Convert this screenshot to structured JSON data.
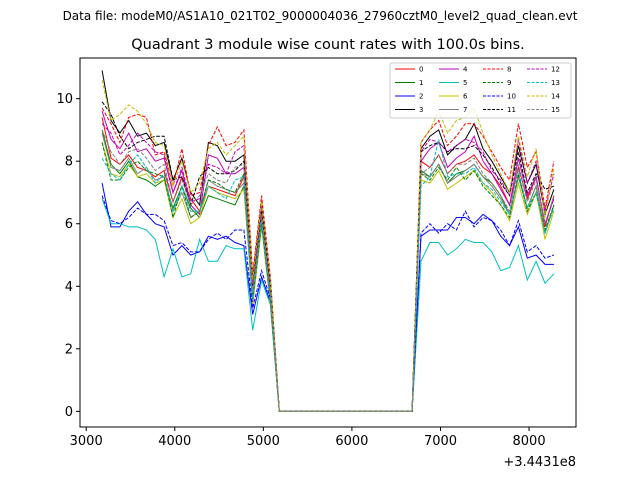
{
  "figure_header": "Data file: modeM0/AS1A10_021T02_9000004036_27960cztM0_level2_quad_clean.evt",
  "chart_data": {
    "type": "line",
    "title": "Quadrant 3 module wise count rates with 100.0s bins.",
    "xlabel": "",
    "ylabel": "",
    "x_offset_label": "+3.4431e8",
    "xlim": [
      2930,
      8530
    ],
    "ylim": [
      -0.5,
      11.3
    ],
    "xticks": [
      3000,
      4000,
      5000,
      6000,
      7000,
      8000
    ],
    "yticks": [
      0,
      2,
      4,
      6,
      8,
      10
    ],
    "legend_location": "upper right",
    "legend_columns": 4,
    "x": [
      3180,
      3280,
      3380,
      3480,
      3580,
      3680,
      3780,
      3880,
      3980,
      4080,
      4180,
      4280,
      4380,
      4480,
      4580,
      4680,
      4780,
      4880,
      4980,
      5080,
      5180,
      5280,
      5380,
      5480,
      5580,
      5680,
      5780,
      5880,
      5980,
      6080,
      6180,
      6280,
      6380,
      6480,
      6580,
      6680,
      6780,
      6880,
      6980,
      7080,
      7180,
      7280,
      7380,
      7480,
      7580,
      7680,
      7780,
      7880,
      7980,
      8080,
      8180,
      8280
    ],
    "series": [
      {
        "name": "0",
        "color": "#ff0000",
        "dash": "solid",
        "values": [
          9.4,
          8.1,
          7.9,
          8.2,
          7.8,
          7.7,
          7.5,
          7.7,
          6.7,
          7.5,
          6.8,
          6.4,
          7.2,
          7.1,
          7.0,
          6.9,
          7.5,
          3.6,
          6.2,
          3.6,
          0,
          0,
          0,
          0,
          0,
          0,
          0,
          0,
          0,
          0,
          0,
          0,
          0,
          0,
          0,
          0,
          8.0,
          7.8,
          8.2,
          7.6,
          7.9,
          8.0,
          8.2,
          7.8,
          7.6,
          7.2,
          6.6,
          7.8,
          6.8,
          7.5,
          5.9,
          6.9
        ]
      },
      {
        "name": "1",
        "color": "#008000",
        "dash": "solid",
        "values": [
          9.0,
          7.9,
          7.6,
          8.0,
          7.5,
          7.4,
          7.2,
          7.4,
          6.5,
          7.2,
          6.5,
          6.2,
          6.9,
          6.8,
          6.7,
          6.6,
          7.2,
          3.5,
          6.0,
          3.5,
          0,
          0,
          0,
          0,
          0,
          0,
          0,
          0,
          0,
          0,
          0,
          0,
          0,
          0,
          0,
          0,
          7.7,
          7.5,
          7.9,
          7.3,
          7.6,
          7.7,
          7.9,
          7.5,
          7.3,
          6.9,
          6.3,
          7.5,
          6.5,
          7.2,
          5.7,
          6.6
        ]
      },
      {
        "name": "2",
        "color": "#0000ff",
        "dash": "solid",
        "values": [
          7.3,
          5.9,
          5.9,
          6.4,
          6.7,
          6.3,
          6.0,
          5.9,
          5.0,
          5.3,
          5.0,
          5.1,
          5.6,
          5.5,
          5.6,
          5.4,
          5.3,
          3.1,
          4.3,
          3.5,
          0,
          0,
          0,
          0,
          0,
          0,
          0,
          0,
          0,
          0,
          0,
          0,
          0,
          0,
          0,
          0,
          5.6,
          5.8,
          5.8,
          5.8,
          6.2,
          6.2,
          6.0,
          6.3,
          6.1,
          5.6,
          5.3,
          5.9,
          4.9,
          5.0,
          4.7,
          4.7
        ]
      },
      {
        "name": "3",
        "color": "#000000",
        "dash": "solid",
        "values": [
          10.9,
          9.3,
          8.9,
          9.3,
          8.8,
          8.9,
          8.5,
          8.6,
          7.4,
          8.1,
          7.0,
          6.6,
          8.6,
          8.5,
          8.0,
          8.0,
          8.2,
          4.3,
          6.7,
          4.2,
          0,
          0,
          0,
          0,
          0,
          0,
          0,
          0,
          0,
          0,
          0,
          0,
          0,
          0,
          0,
          0,
          8.4,
          8.8,
          9.0,
          8.2,
          8.5,
          8.7,
          9.2,
          8.4,
          8.0,
          7.5,
          7.0,
          8.5,
          7.3,
          7.9,
          6.3,
          7.1
        ]
      },
      {
        "name": "4",
        "color": "#bf00bf",
        "dash": "solid",
        "values": [
          9.6,
          8.7,
          8.4,
          8.9,
          8.3,
          8.4,
          8.0,
          8.1,
          7.0,
          7.7,
          6.6,
          6.3,
          8.2,
          8.1,
          7.6,
          7.6,
          7.8,
          4.0,
          6.4,
          3.9,
          0,
          0,
          0,
          0,
          0,
          0,
          0,
          0,
          0,
          0,
          0,
          0,
          0,
          0,
          0,
          0,
          8.0,
          8.4,
          8.6,
          7.8,
          8.1,
          8.3,
          8.8,
          8.0,
          7.6,
          7.1,
          6.6,
          8.1,
          6.9,
          7.5,
          6.0,
          6.8
        ]
      },
      {
        "name": "5",
        "color": "#00bfbf",
        "dash": "solid",
        "values": [
          6.8,
          6.0,
          6.0,
          5.9,
          5.9,
          5.8,
          5.5,
          4.3,
          5.2,
          4.3,
          4.4,
          5.5,
          4.8,
          4.8,
          5.3,
          5.2,
          5.2,
          2.6,
          4.2,
          3.4,
          0,
          0,
          0,
          0,
          0,
          0,
          0,
          0,
          0,
          0,
          0,
          0,
          0,
          0,
          0,
          0,
          4.8,
          5.4,
          5.4,
          5.0,
          5.2,
          5.5,
          5.4,
          5.4,
          5.1,
          4.5,
          4.6,
          5.3,
          4.2,
          4.8,
          4.1,
          4.4
        ]
      },
      {
        "name": "6",
        "color": "#bfbf00",
        "dash": "solid",
        "values": [
          8.6,
          7.6,
          7.5,
          7.9,
          7.5,
          7.6,
          7.3,
          7.4,
          6.2,
          6.8,
          6.0,
          6.2,
          7.2,
          7.0,
          6.9,
          6.8,
          7.1,
          3.4,
          5.9,
          3.4,
          0,
          0,
          0,
          0,
          0,
          0,
          0,
          0,
          0,
          0,
          0,
          0,
          0,
          0,
          0,
          0,
          7.4,
          7.3,
          7.7,
          7.1,
          7.3,
          7.5,
          7.7,
          7.3,
          7.0,
          6.6,
          6.1,
          7.3,
          6.3,
          7.0,
          5.5,
          6.4
        ]
      },
      {
        "name": "7",
        "color": "#808080",
        "dash": "solid",
        "values": [
          8.9,
          7.8,
          7.7,
          8.1,
          7.6,
          7.8,
          7.4,
          7.5,
          6.4,
          7.0,
          6.2,
          6.4,
          7.4,
          7.2,
          7.1,
          7.0,
          7.3,
          3.5,
          6.0,
          3.5,
          0,
          0,
          0,
          0,
          0,
          0,
          0,
          0,
          0,
          0,
          0,
          0,
          0,
          0,
          0,
          0,
          7.6,
          7.5,
          7.9,
          7.3,
          7.5,
          7.7,
          7.9,
          7.5,
          7.2,
          6.8,
          6.3,
          7.5,
          6.5,
          7.2,
          5.7,
          6.6
        ]
      },
      {
        "name": "8",
        "color": "#ff0000",
        "dash": "dashed",
        "values": [
          9.7,
          9.2,
          8.6,
          9.4,
          9.5,
          9.4,
          8.2,
          8.3,
          7.2,
          8.4,
          6.9,
          7.0,
          8.5,
          9.1,
          8.5,
          8.6,
          9.0,
          4.4,
          6.9,
          4.3,
          0,
          0,
          0,
          0,
          0,
          0,
          0,
          0,
          0,
          0,
          0,
          0,
          0,
          0,
          0,
          0,
          8.6,
          9.0,
          9.3,
          8.5,
          8.8,
          9.2,
          9.2,
          8.8,
          8.3,
          7.8,
          7.4,
          9.2,
          7.8,
          8.3,
          6.5,
          8.0
        ]
      },
      {
        "name": "9",
        "color": "#008000",
        "dash": "dashed",
        "values": [
          8.6,
          7.4,
          7.4,
          7.8,
          8.0,
          7.7,
          7.6,
          7.5,
          6.2,
          7.2,
          6.2,
          6.4,
          7.4,
          7.3,
          7.1,
          7.0,
          7.6,
          3.6,
          6.0,
          3.6,
          0,
          0,
          0,
          0,
          0,
          0,
          0,
          0,
          0,
          0,
          0,
          0,
          0,
          0,
          0,
          0,
          7.6,
          7.4,
          7.8,
          7.4,
          7.8,
          7.4,
          7.7,
          7.2,
          6.9,
          6.6,
          6.2,
          7.6,
          6.4,
          7.0,
          5.8,
          6.6
        ]
      },
      {
        "name": "10",
        "color": "#0000ff",
        "dash": "dashed",
        "values": [
          6.9,
          6.1,
          6.0,
          6.2,
          6.5,
          6.3,
          6.3,
          6.1,
          5.3,
          5.4,
          5.1,
          5.1,
          5.5,
          5.7,
          5.5,
          5.8,
          5.8,
          3.3,
          4.5,
          3.6,
          0,
          0,
          0,
          0,
          0,
          0,
          0,
          0,
          0,
          0,
          0,
          0,
          0,
          0,
          0,
          0,
          5.7,
          6.0,
          5.7,
          6.0,
          5.8,
          6.4,
          5.9,
          6.2,
          6.1,
          5.8,
          5.3,
          6.1,
          5.1,
          5.3,
          4.9,
          5.0
        ]
      },
      {
        "name": "11",
        "color": "#000000",
        "dash": "dashed",
        "values": [
          9.9,
          9.5,
          8.8,
          8.4,
          8.6,
          8.7,
          8.8,
          8.8,
          7.4,
          7.5,
          6.6,
          7.5,
          7.8,
          7.6,
          7.6,
          7.7,
          8.0,
          4.0,
          6.4,
          4.0,
          0,
          0,
          0,
          0,
          0,
          0,
          0,
          0,
          0,
          0,
          0,
          0,
          0,
          0,
          0,
          0,
          8.3,
          8.5,
          8.6,
          8.3,
          8.4,
          8.4,
          8.5,
          8.2,
          7.8,
          7.3,
          6.9,
          8.3,
          7.0,
          7.6,
          7.1,
          7.2
        ]
      },
      {
        "name": "12",
        "color": "#bf00bf",
        "dash": "dashed",
        "values": [
          9.2,
          8.9,
          8.2,
          8.5,
          8.9,
          8.6,
          8.3,
          8.2,
          7.0,
          7.8,
          6.7,
          6.8,
          7.9,
          7.8,
          7.6,
          8.3,
          8.5,
          4.1,
          6.6,
          4.1,
          0,
          0,
          0,
          0,
          0,
          0,
          0,
          0,
          0,
          0,
          0,
          0,
          0,
          0,
          0,
          0,
          8.3,
          8.7,
          8.6,
          8.3,
          8.5,
          8.7,
          8.6,
          8.3,
          7.7,
          7.4,
          6.9,
          8.7,
          7.3,
          8.0,
          6.4,
          7.6
        ]
      },
      {
        "name": "13",
        "color": "#00bfbf",
        "dash": "dashed",
        "values": [
          8.1,
          7.6,
          7.4,
          7.9,
          8.2,
          7.8,
          7.3,
          7.6,
          6.4,
          7.2,
          6.4,
          6.4,
          7.2,
          7.0,
          6.8,
          7.4,
          7.5,
          3.6,
          6.1,
          3.6,
          0,
          0,
          0,
          0,
          0,
          0,
          0,
          0,
          0,
          0,
          0,
          0,
          0,
          0,
          0,
          0,
          7.2,
          7.5,
          8.7,
          7.5,
          7.6,
          7.6,
          7.8,
          7.3,
          7.1,
          6.7,
          6.3,
          7.7,
          6.5,
          7.0,
          5.7,
          6.5
        ]
      },
      {
        "name": "14",
        "color": "#bfbf00",
        "dash": "dashed",
        "values": [
          10.6,
          9.3,
          9.5,
          9.8,
          9.6,
          9.2,
          8.6,
          8.5,
          7.2,
          8.0,
          7.0,
          7.3,
          8.4,
          8.6,
          8.2,
          8.5,
          8.8,
          4.2,
          6.7,
          4.2,
          0,
          0,
          0,
          0,
          0,
          0,
          0,
          0,
          0,
          0,
          0,
          0,
          0,
          0,
          0,
          0,
          8.6,
          9.0,
          9.6,
          8.9,
          9.3,
          9.4,
          9.7,
          8.9,
          8.2,
          7.6,
          7.0,
          8.8,
          7.5,
          8.4,
          6.2,
          7.8
        ]
      },
      {
        "name": "15",
        "color": "#808080",
        "dash": "dashed",
        "values": [
          9.0,
          8.3,
          7.9,
          8.3,
          8.4,
          8.1,
          7.7,
          7.9,
          6.7,
          7.4,
          6.6,
          6.9,
          7.6,
          7.4,
          7.3,
          7.8,
          7.9,
          3.8,
          6.3,
          3.8,
          0,
          0,
          0,
          0,
          0,
          0,
          0,
          0,
          0,
          0,
          0,
          0,
          0,
          0,
          0,
          0,
          7.6,
          7.8,
          8.2,
          7.6,
          7.9,
          7.9,
          8.1,
          7.6,
          7.3,
          6.9,
          6.4,
          7.9,
          6.7,
          7.4,
          6.0,
          6.9
        ]
      }
    ]
  }
}
